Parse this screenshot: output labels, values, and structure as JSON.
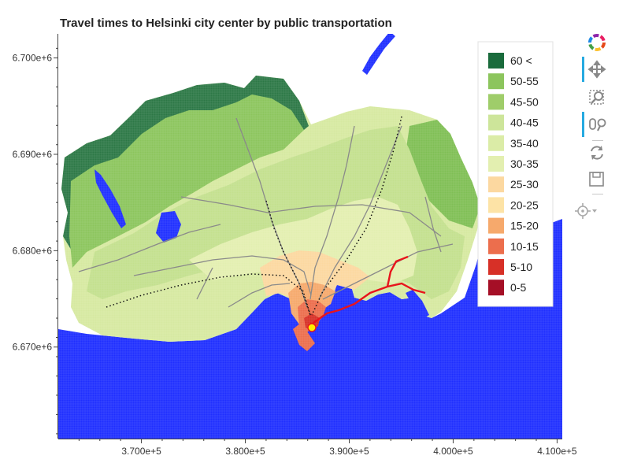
{
  "chart_data": {
    "type": "heatmap",
    "title": "Travel times to Helsinki city center by public transportation",
    "xlabel": "",
    "ylabel": "",
    "x_ticks": [
      "3.700e+5",
      "3.800e+5",
      "3.900e+5",
      "4.000e+5",
      "4.100e+5"
    ],
    "x_tick_values": [
      370000,
      380000,
      390000,
      400000,
      410000
    ],
    "y_ticks": [
      "6.670e+6",
      "6.680e+6",
      "6.690e+6",
      "6.700e+6"
    ],
    "y_tick_values": [
      6670000,
      6680000,
      6690000,
      6700000
    ],
    "xlim": [
      362000,
      410500
    ],
    "ylim": [
      6660500,
      6702500
    ],
    "legend_position": "top-right",
    "categories": [
      "60 <",
      "50-55",
      "45-50",
      "40-45",
      "35-40",
      "30-35",
      "25-30",
      "20-25",
      "15-20",
      "10-15",
      "5-10",
      "0-5"
    ],
    "category_colors": [
      "#1a6b3c",
      "#8cc55d",
      "#9fcd6a",
      "#cde59a",
      "#dbeca7",
      "#e3efb0",
      "#fcd8a0",
      "#fde3a6",
      "#f6a96c",
      "#ec6e4d",
      "#d73027",
      "#a50f26"
    ],
    "water_color": "#1f2fff",
    "center_point": {
      "x": 385800,
      "y": 6671300,
      "label": ""
    },
    "grid": false
  },
  "toolbar": {
    "tools": [
      "logo-icon",
      "pan-icon",
      "box-zoom-icon",
      "wheel-zoom-icon",
      "reset-icon",
      "save-icon",
      "hover-icon"
    ]
  }
}
